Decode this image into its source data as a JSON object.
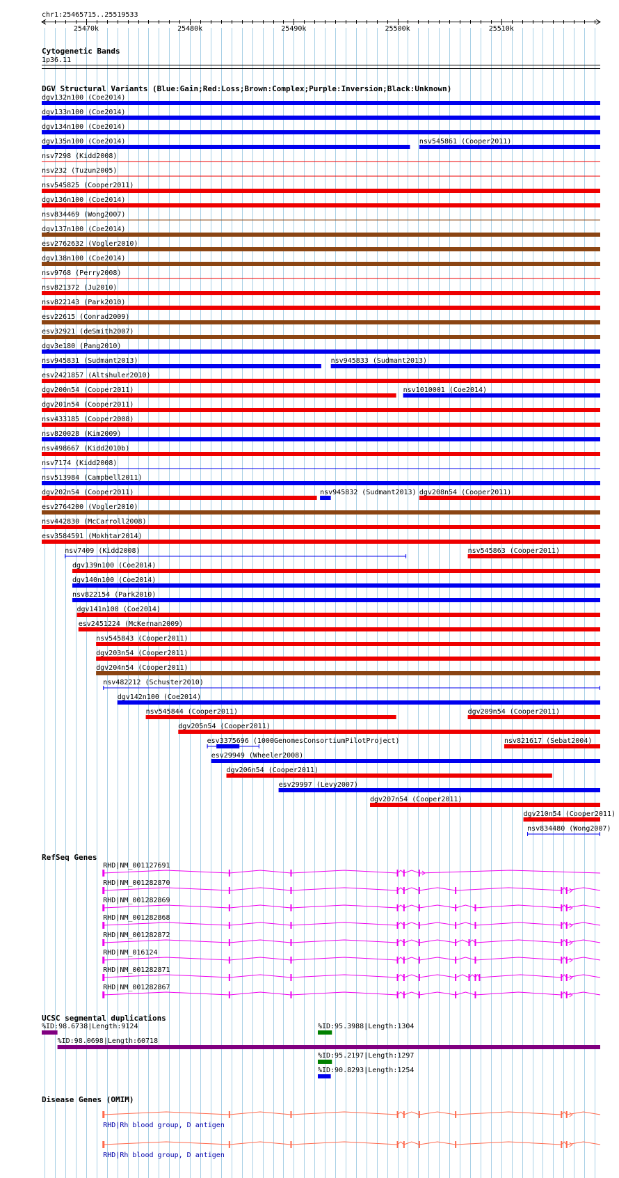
{
  "ruler": {
    "region": "chr1:25465715..25519533",
    "start": 25465715,
    "end": 25519533,
    "ticks": [
      {
        "pos": 25470000,
        "label": "25470k"
      },
      {
        "pos": 25480000,
        "label": "25480k"
      },
      {
        "pos": 25490000,
        "label": "25490k"
      },
      {
        "pos": 25500000,
        "label": "25500k"
      },
      {
        "pos": 25510000,
        "label": "25510k"
      }
    ]
  },
  "colors": {
    "gain": "#0000ee",
    "loss": "#ee0000",
    "complex": "#8b4513",
    "inversion": "#800080",
    "unknown": "#000000",
    "gene": "#ee00ee",
    "segdup_high": "#800080",
    "segdup_mid": "#008000",
    "segdup_low": "#0000ee",
    "omim": "#ff6a4d",
    "omim_label": "#0000aa",
    "grid": "#a8d0e6"
  },
  "bands": {
    "title": "Cytogenetic Bands",
    "label": "1p36.11"
  },
  "dgv": {
    "title": "DGV Structural Variants (Blue:Gain;Red:Loss;Brown:Complex;Purple:Inversion;Black:Unknown)",
    "rows": [
      [
        {
          "label": "dgv132n100 (Coe2014)",
          "start": 25465715,
          "end": 25519533,
          "type": "gain",
          "style": "thick"
        }
      ],
      [
        {
          "label": "dgv133n100 (Coe2014)",
          "start": 25465715,
          "end": 25519533,
          "type": "gain",
          "style": "thick"
        }
      ],
      [
        {
          "label": "dgv134n100 (Coe2014)",
          "start": 25465715,
          "end": 25519533,
          "type": "gain",
          "style": "thick"
        }
      ],
      [
        {
          "label": "dgv135n100 (Coe2014)",
          "start": 25465715,
          "end": 25501200,
          "type": "gain",
          "style": "thick"
        },
        {
          "label": "nsv545861 (Cooper2011)",
          "start": 25502100,
          "end": 25519533,
          "type": "gain",
          "style": "thick"
        }
      ],
      [
        {
          "label": "nsv7298 (Kidd2008)",
          "start": 25465715,
          "end": 25519533,
          "type": "loss",
          "style": "thin"
        }
      ],
      [
        {
          "label": "nsv232 (Tuzun2005)",
          "start": 25465715,
          "end": 25519533,
          "type": "loss",
          "style": "thin"
        }
      ],
      [
        {
          "label": "nsv545825 (Cooper2011)",
          "start": 25465715,
          "end": 25519533,
          "type": "loss",
          "style": "thick"
        }
      ],
      [
        {
          "label": "dgv136n100 (Coe2014)",
          "start": 25465715,
          "end": 25519533,
          "type": "loss",
          "style": "thick"
        }
      ],
      [
        {
          "label": "nsv834469 (Wong2007)",
          "start": 25465715,
          "end": 25519533,
          "type": "complex",
          "style": "thin"
        }
      ],
      [
        {
          "label": "dgv137n100 (Coe2014)",
          "start": 25465715,
          "end": 25519533,
          "type": "complex",
          "style": "thick"
        }
      ],
      [
        {
          "label": "esv2762632 (Vogler2010)",
          "start": 25465715,
          "end": 25519533,
          "type": "complex",
          "style": "thick"
        }
      ],
      [
        {
          "label": "dgv138n100 (Coe2014)",
          "start": 25465715,
          "end": 25519533,
          "type": "complex",
          "style": "thick"
        }
      ],
      [
        {
          "label": "nsv9768 (Perry2008)",
          "start": 25465715,
          "end": 25519533,
          "type": "loss",
          "style": "thin"
        }
      ],
      [
        {
          "label": "nsv821372 (Ju2010)",
          "start": 25465715,
          "end": 25519533,
          "type": "loss",
          "style": "thick"
        }
      ],
      [
        {
          "label": "nsv822143 (Park2010)",
          "start": 25465715,
          "end": 25519533,
          "type": "loss",
          "style": "thick"
        }
      ],
      [
        {
          "label": "esv22615 (Conrad2009)",
          "start": 25465715,
          "end": 25519533,
          "type": "complex",
          "style": "thick"
        }
      ],
      [
        {
          "label": "esv32921 (deSmith2007)",
          "start": 25465715,
          "end": 25519533,
          "type": "complex",
          "style": "thick"
        }
      ],
      [
        {
          "label": "dgv3e180 (Pang2010)",
          "start": 25465715,
          "end": 25519533,
          "type": "gain",
          "style": "thick"
        }
      ],
      [
        {
          "label": "nsv945831 (Sudmant2013)",
          "start": 25465715,
          "end": 25492650,
          "type": "gain",
          "style": "thick"
        },
        {
          "label": "nsv945833 (Sudmant2013)",
          "start": 25493570,
          "end": 25519533,
          "type": "gain",
          "style": "thick"
        }
      ],
      [
        {
          "label": "esv2421857 (Altshuler2010)",
          "start": 25465715,
          "end": 25519533,
          "type": "loss",
          "style": "thick"
        }
      ],
      [
        {
          "label": "dgv200n54 (Cooper2011)",
          "start": 25465715,
          "end": 25499870,
          "type": "loss",
          "style": "thick"
        },
        {
          "label": "nsv1010001 (Coe2014)",
          "start": 25500540,
          "end": 25519533,
          "type": "gain",
          "style": "thick"
        }
      ],
      [
        {
          "label": "dgv201n54 (Cooper2011)",
          "start": 25465715,
          "end": 25519533,
          "type": "loss",
          "style": "thick"
        }
      ],
      [
        {
          "label": "nsv433185 (Cooper2008)",
          "start": 25465715,
          "end": 25519533,
          "type": "loss",
          "style": "thick"
        }
      ],
      [
        {
          "label": "nsv820028 (Kim2009)",
          "start": 25465715,
          "end": 25519533,
          "type": "gain",
          "style": "thick"
        }
      ],
      [
        {
          "label": "nsv498667 (Kidd2010b)",
          "start": 25465715,
          "end": 25519533,
          "type": "loss",
          "style": "thick"
        }
      ],
      [
        {
          "label": "nsv7174 (Kidd2008)",
          "start": 25465715,
          "end": 25519533,
          "type": "gain",
          "style": "thin"
        }
      ],
      [
        {
          "label": "nsv513984 (Campbell2011)",
          "start": 25465715,
          "end": 25519533,
          "type": "gain",
          "style": "thick"
        }
      ],
      [
        {
          "label": "dgv202n54 (Cooper2011)",
          "start": 25465715,
          "end": 25492230,
          "type": "loss",
          "style": "thick"
        },
        {
          "label": "nsv945832 (Sudmant2013)",
          "start": 25492530,
          "end": 25493570,
          "type": "gain",
          "style": "thick"
        },
        {
          "label": "dgv208n54 (Cooper2011)",
          "start": 25502100,
          "end": 25519533,
          "type": "loss",
          "style": "thick"
        }
      ],
      [
        {
          "label": "esv2764200 (Vogler2010)",
          "start": 25465715,
          "end": 25519533,
          "type": "complex",
          "style": "thick"
        }
      ],
      [
        {
          "label": "nsv442830 (McCarroll2008)",
          "start": 25465715,
          "end": 25519533,
          "type": "loss",
          "style": "thick"
        }
      ],
      [
        {
          "label": "esv3584591 (Mokhtar2014)",
          "start": 25465715,
          "end": 25519533,
          "type": "loss",
          "style": "thick"
        }
      ],
      [
        {
          "label": "nsv7409 (Kidd2008)",
          "start": 25467940,
          "end": 25500840,
          "type": "gain",
          "style": "bracket"
        },
        {
          "label": "nsv545863 (Cooper2011)",
          "start": 25506770,
          "end": 25519533,
          "type": "loss",
          "style": "thick"
        }
      ],
      [
        {
          "label": "dgv139n100 (Coe2014)",
          "start": 25468660,
          "end": 25519533,
          "type": "loss",
          "style": "thick"
        }
      ],
      [
        {
          "label": "dgv140n100 (Coe2014)",
          "start": 25468660,
          "end": 25519533,
          "type": "gain",
          "style": "thick"
        }
      ],
      [
        {
          "label": "nsv822154 (Park2010)",
          "start": 25468660,
          "end": 25519533,
          "type": "gain",
          "style": "thick"
        }
      ],
      [
        {
          "label": "dgv141n100 (Coe2014)",
          "start": 25469100,
          "end": 25519533,
          "type": "loss",
          "style": "thick"
        }
      ],
      [
        {
          "label": "esv2451224 (McKernan2009)",
          "start": 25469250,
          "end": 25519533,
          "type": "loss",
          "style": "thick"
        }
      ],
      [
        {
          "label": "nsv545843 (Cooper2011)",
          "start": 25470950,
          "end": 25519533,
          "type": "loss",
          "style": "thick"
        }
      ],
      [
        {
          "label": "dgv203n54 (Cooper2011)",
          "start": 25470950,
          "end": 25519533,
          "type": "loss",
          "style": "thick"
        }
      ],
      [
        {
          "label": "dgv204n54 (Cooper2011)",
          "start": 25470950,
          "end": 25519533,
          "type": "complex",
          "style": "thick"
        }
      ],
      [
        {
          "label": "nsv482212 (Schuster2010)",
          "start": 25471630,
          "end": 25519533,
          "type": "gain",
          "style": "bracket"
        }
      ],
      [
        {
          "label": "dgv142n100 (Coe2014)",
          "start": 25473000,
          "end": 25519533,
          "type": "gain",
          "style": "thick"
        }
      ],
      [
        {
          "label": "nsv545844 (Cooper2011)",
          "start": 25475740,
          "end": 25499870,
          "type": "loss",
          "style": "thick"
        },
        {
          "label": "dgv209n54 (Cooper2011)",
          "start": 25506770,
          "end": 25519533,
          "type": "loss",
          "style": "thick"
        }
      ],
      [
        {
          "label": "dgv205n54 (Cooper2011)",
          "start": 25478870,
          "end": 25519533,
          "type": "loss",
          "style": "thick"
        }
      ],
      [
        {
          "label": "esv3375696 (1000GenomesConsortiumPilotProject)",
          "start": 25481640,
          "end": 25486680,
          "type": "gain",
          "style": "exons"
        },
        {
          "label": "nsv821617 (Sebat2004)",
          "start": 25510280,
          "end": 25519533,
          "type": "loss",
          "style": "thick"
        }
      ],
      [
        {
          "label": "esv29949 (Wheeler2008)",
          "start": 25482050,
          "end": 25519533,
          "type": "gain",
          "style": "thick"
        }
      ],
      [
        {
          "label": "dgv206n54 (Cooper2011)",
          "start": 25483510,
          "end": 25514900,
          "type": "loss",
          "style": "thick"
        }
      ],
      [
        {
          "label": "esv29997 (Levy2007)",
          "start": 25488540,
          "end": 25519533,
          "type": "gain",
          "style": "thick"
        }
      ],
      [
        {
          "label": "dgv207n54 (Cooper2011)",
          "start": 25497350,
          "end": 25519533,
          "type": "loss",
          "style": "thick"
        }
      ],
      [
        {
          "label": "dgv210n54 (Cooper2011)",
          "start": 25512130,
          "end": 25519533,
          "type": "loss",
          "style": "thick"
        }
      ],
      [
        {
          "label": "nsv834480 (Wong2007)",
          "start": 25512500,
          "end": 25519533,
          "type": "gain",
          "style": "bracket"
        }
      ]
    ]
  },
  "refseq": {
    "title": "RefSeq Genes",
    "tx_start": 25471630,
    "tx_end": 25519533,
    "transcripts": [
      {
        "label": "RHD|NM_001127691",
        "exons": [
          25471630,
          25483800,
          25489740,
          25500000,
          25500620,
          25502100
        ]
      },
      {
        "label": "RHD|NM_001282870",
        "exons": [
          25471630,
          25483800,
          25489740,
          25500000,
          25500620,
          25502100,
          25505600,
          25515800,
          25516300
        ]
      },
      {
        "label": "RHD|NM_001282869",
        "exons": [
          25471630,
          25483800,
          25489740,
          25500000,
          25500620,
          25502100,
          25505600,
          25507500,
          25515800,
          25516300
        ]
      },
      {
        "label": "RHD|NM_001282868",
        "exons": [
          25471630,
          25483800,
          25489740,
          25500000,
          25500620,
          25502100,
          25505600,
          25507500,
          25515800,
          25516300
        ]
      },
      {
        "label": "RHD|NM_001282872",
        "exons": [
          25471630,
          25483800,
          25489740,
          25500000,
          25500620,
          25502100,
          25505600,
          25506900,
          25507500,
          25515800,
          25516300
        ]
      },
      {
        "label": "RHD|NM_016124",
        "exons": [
          25471630,
          25483800,
          25489740,
          25500000,
          25500620,
          25502100,
          25505600,
          25507500,
          25515800,
          25516300
        ]
      },
      {
        "label": "RHD|NM_001282871",
        "exons": [
          25471630,
          25483800,
          25489740,
          25500000,
          25500620,
          25502100,
          25505600,
          25506900,
          25507500,
          25507900,
          25515800,
          25516300
        ]
      },
      {
        "label": "RHD|NM_001282867",
        "exons": [
          25471630,
          25483800,
          25489740,
          25500000,
          25500620,
          25502100,
          25505600,
          25507500,
          25515800,
          25516300
        ]
      }
    ]
  },
  "segdups": {
    "title": "UCSC segmental duplications",
    "items": [
      {
        "label": "%ID:98.6738|Length:9124",
        "start": 25465715,
        "end": 25467230,
        "color": "#800080",
        "row": 0
      },
      {
        "label": "%ID:95.3988|Length:1304",
        "start": 25492320,
        "end": 25493680,
        "color": "#008000",
        "row": 0
      },
      {
        "label": "%ID:98.0698|Length:60718",
        "start": 25467230,
        "end": 25519533,
        "color": "#800080",
        "row": 1
      },
      {
        "label": "%ID:95.2197|Length:1297",
        "start": 25492320,
        "end": 25493680,
        "color": "#008000",
        "row": 2
      },
      {
        "label": "%ID:90.8293|Length:1254",
        "start": 25492320,
        "end": 25493570,
        "color": "#0000ee",
        "row": 3
      }
    ]
  },
  "omim": {
    "title": "Disease Genes (OMIM)",
    "items": [
      {
        "label": "RHD|Rh blood group, D antigen",
        "exons": [
          25471630,
          25483800,
          25489740,
          25500000,
          25500620,
          25502100,
          25505600,
          25515800,
          25516300
        ]
      },
      {
        "label": "RHD|Rh blood group, D antigen",
        "exons": [
          25471630,
          25483800,
          25489740,
          25500000,
          25500620,
          25502100,
          25505600,
          25515800,
          25516300
        ]
      }
    ]
  }
}
